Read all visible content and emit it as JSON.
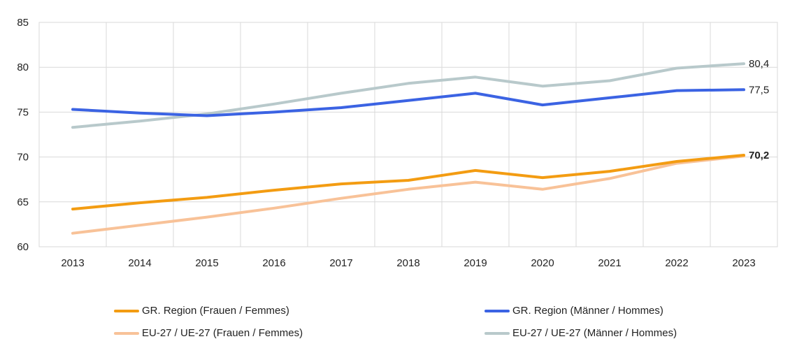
{
  "chart_data": {
    "type": "line",
    "title": "",
    "xlabel": "",
    "ylabel": "",
    "x": [
      "2013",
      "2014",
      "2015",
      "2016",
      "2017",
      "2018",
      "2019",
      "2020",
      "2021",
      "2022",
      "2023"
    ],
    "ylim": [
      60,
      85
    ],
    "yticks": [
      "60",
      "65",
      "70",
      "75",
      "80",
      "85"
    ],
    "grid": true,
    "legend_position": "bottom",
    "series": [
      {
        "name": "GR. Region (Frauen / Femmes)",
        "color": "#F39C12",
        "values": [
          64.2,
          64.9,
          65.5,
          66.3,
          67.0,
          67.4,
          68.5,
          67.7,
          68.4,
          69.5,
          70.2
        ],
        "end_label": "70,2",
        "end_label_bold": true
      },
      {
        "name": "GR. Region (Männer / Hommes)",
        "color": "#3B63E3",
        "values": [
          75.3,
          74.9,
          74.6,
          75.0,
          75.5,
          76.3,
          77.1,
          75.8,
          76.6,
          77.4,
          77.5
        ],
        "end_label": "77,5",
        "end_label_bold": false
      },
      {
        "name": "EU-27 / UE-27 (Frauen / Femmes)",
        "color": "#F8C298",
        "values": [
          61.5,
          62.4,
          63.3,
          64.3,
          65.4,
          66.4,
          67.2,
          66.4,
          67.6,
          69.3,
          70.1
        ],
        "end_label": "",
        "end_label_bold": false
      },
      {
        "name": "EU-27 / UE-27 (Männer / Hommes)",
        "color": "#B8C9CB",
        "values": [
          73.3,
          74.0,
          74.8,
          75.9,
          77.1,
          78.2,
          78.9,
          77.9,
          78.5,
          79.9,
          80.4
        ],
        "end_label": "80,4",
        "end_label_bold": false
      }
    ]
  }
}
